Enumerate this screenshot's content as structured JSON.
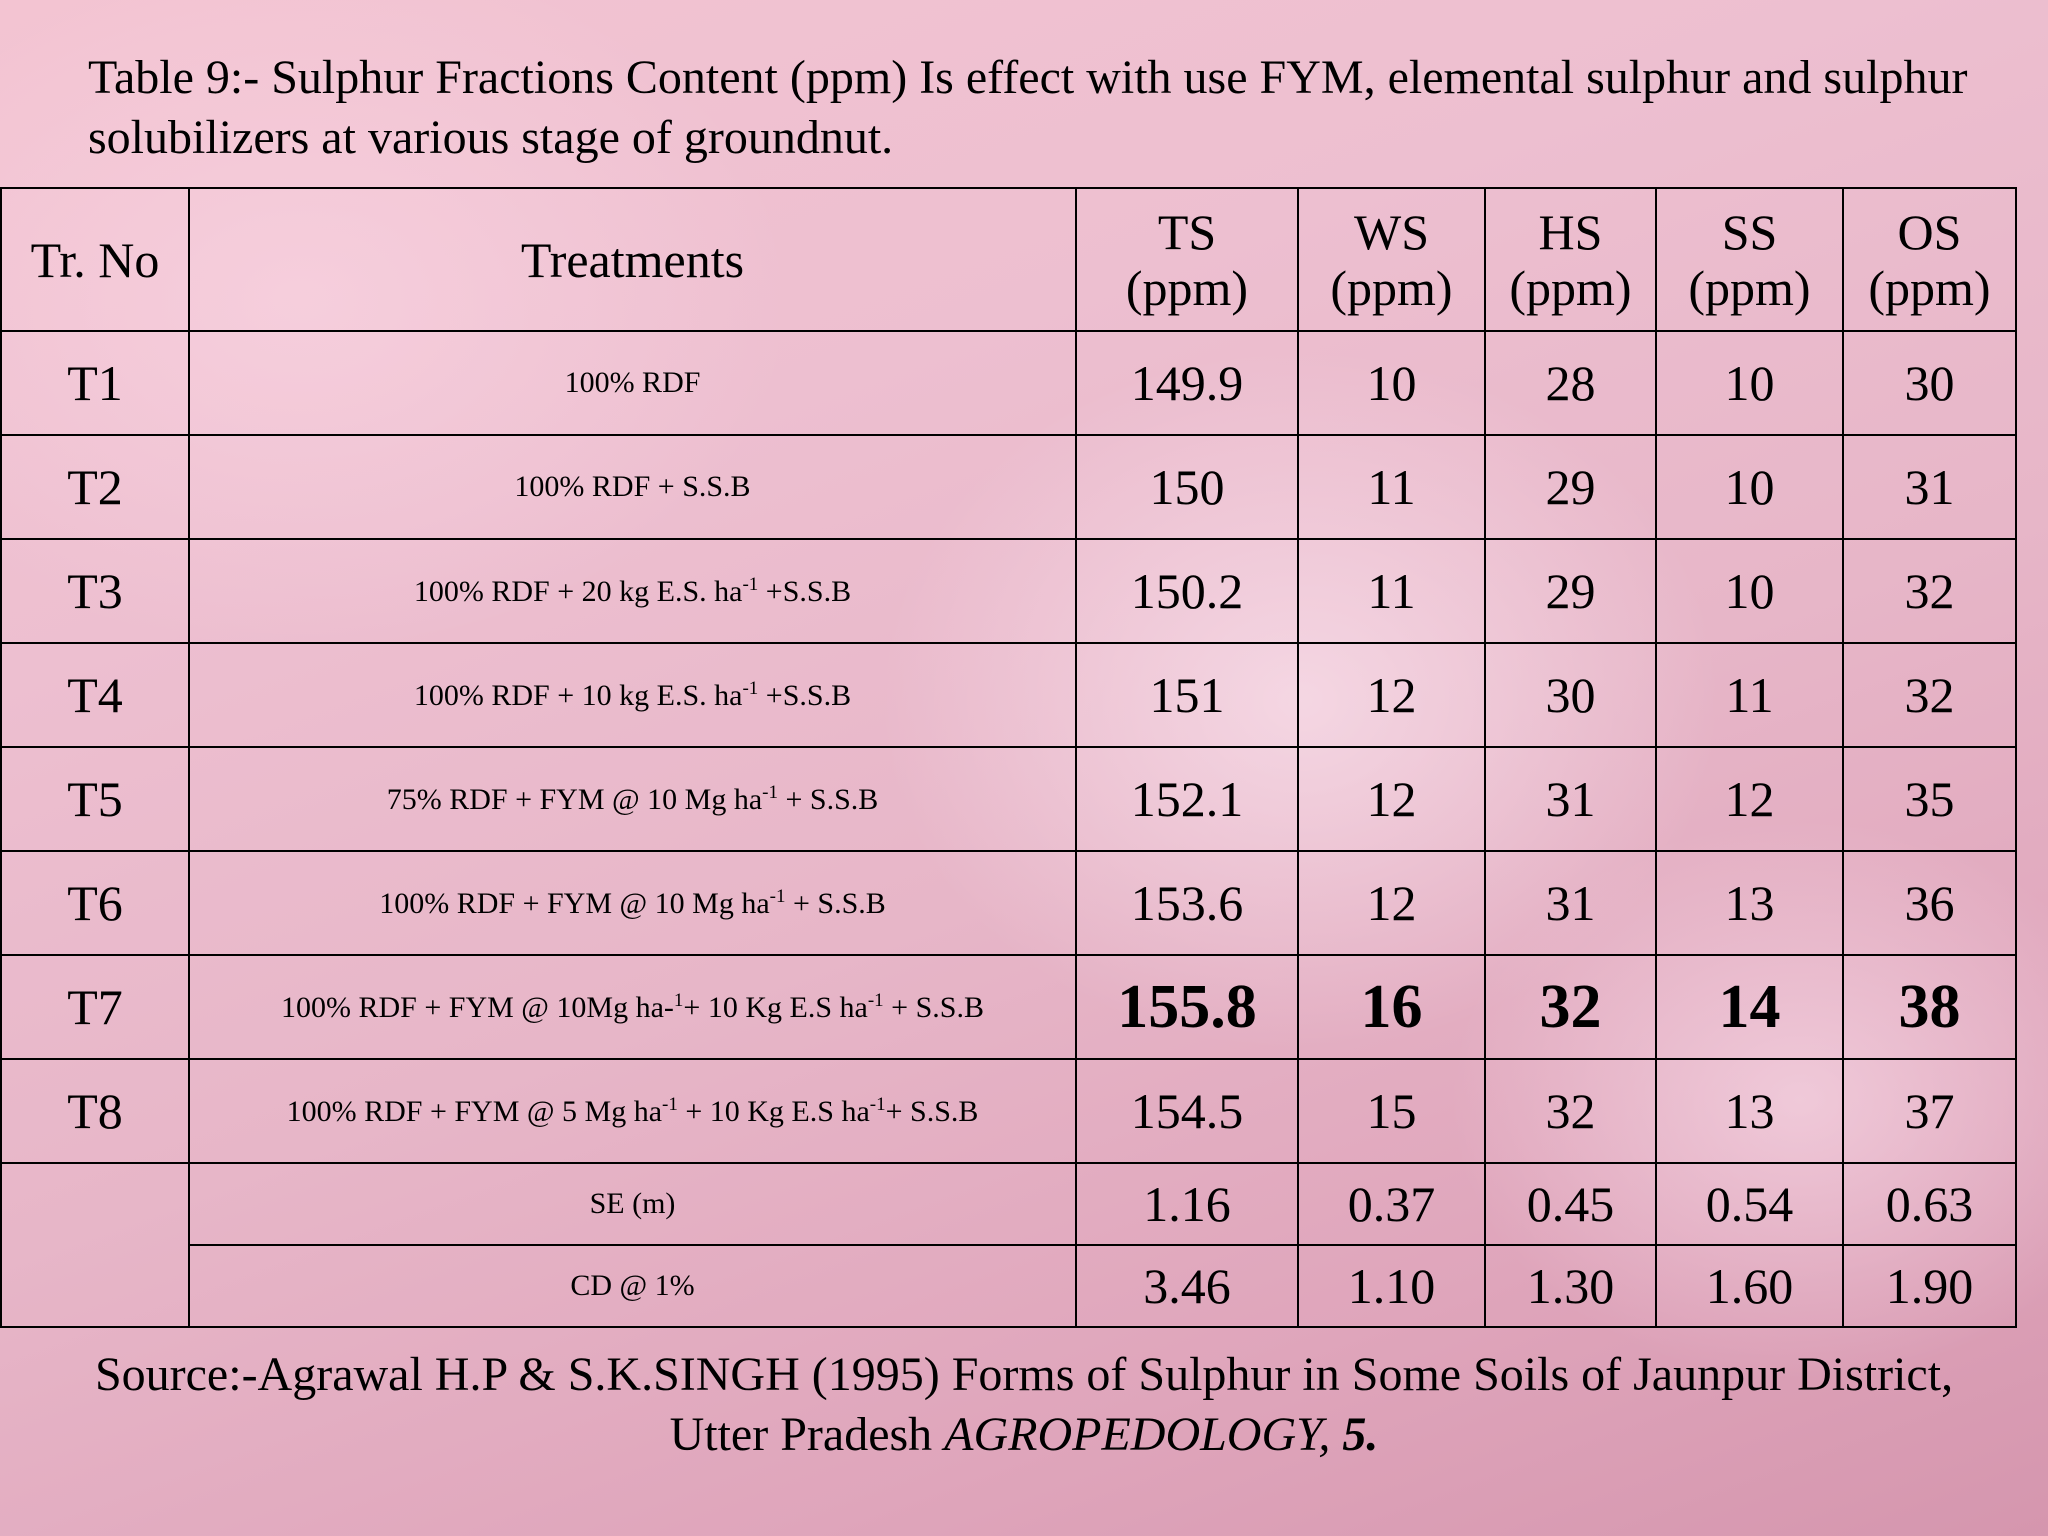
{
  "title": "Table 9:- Sulphur Fractions Content (ppm) Is effect with use FYM, elemental sulphur and sulphur solubilizers at various stage of groundnut.",
  "table": {
    "headers": {
      "no": "Tr. No",
      "treatments": "Treatments",
      "ts": [
        "TS",
        "(ppm)"
      ],
      "ws": [
        "WS",
        "(ppm)"
      ],
      "hs": [
        "HS",
        "(ppm)"
      ],
      "ss": [
        "SS",
        "(ppm)"
      ],
      "os": [
        "OS",
        "(ppm)"
      ]
    },
    "rows": [
      {
        "no": "T1",
        "t": [
          "100% RDF"
        ],
        "sup": [],
        "ts": "149.9",
        "ws": "10",
        "hs": "28",
        "ss": "10",
        "os": "30"
      },
      {
        "no": "T2",
        "t": [
          "100% RDF + S.S.B"
        ],
        "sup": [],
        "ts": "150",
        "ws": "11",
        "hs": "29",
        "ss": "10",
        "os": "31"
      },
      {
        "no": "T3",
        "t": [
          "100% RDF + 20 kg E.S. ha",
          " +S.S.B"
        ],
        "sup": [
          "-1"
        ],
        "ts": "150.2",
        "ws": "11",
        "hs": "29",
        "ss": "10",
        "os": "32"
      },
      {
        "no": "T4",
        "t": [
          "100% RDF + 10 kg E.S. ha",
          " +S.S.B"
        ],
        "sup": [
          "-1"
        ],
        "ts": "151",
        "ws": "12",
        "hs": "30",
        "ss": "11",
        "os": "32"
      },
      {
        "no": "T5",
        "t": [
          "75% RDF + FYM @ 10 Mg ha",
          " + S.S.B"
        ],
        "sup": [
          "-1"
        ],
        "ts": "152.1",
        "ws": "12",
        "hs": "31",
        "ss": "12",
        "os": "35"
      },
      {
        "no": "T6",
        "t": [
          "100% RDF + FYM @ 10 Mg ha",
          " + S.S.B"
        ],
        "sup": [
          "-1"
        ],
        "ts": "153.6",
        "ws": "12",
        "hs": "31",
        "ss": "13",
        "os": "36"
      },
      {
        "no": "T7",
        "t": [
          "100% RDF + FYM @ 10Mg ha-",
          "+ 10 Kg E.S ha",
          " + S.S.B"
        ],
        "sup": [
          "1",
          "-1"
        ],
        "ts": "155.8",
        "ws": "16",
        "hs": "32",
        "ss": "14",
        "os": "38"
      },
      {
        "no": "T8",
        "t": [
          "100% RDF + FYM @ 5 Mg ha",
          " + 10 Kg E.S ha",
          "+ S.S.B"
        ],
        "sup": [
          "-1",
          "-1"
        ],
        "ts": "154.5",
        "ws": "15",
        "hs": "32",
        "ss": "13",
        "os": "37"
      }
    ],
    "stats": [
      {
        "label": "SE (m)",
        "ts": "1.16",
        "ws": "0.37",
        "hs": "0.45",
        "ss": "0.54",
        "os": "0.63"
      },
      {
        "label": "CD @ 1%",
        "ts": "3.46",
        "ws": "1.10",
        "hs": "1.30",
        "ss": "1.60",
        "os": "1.90"
      }
    ]
  },
  "source": {
    "line1": "Source:-Agrawal H.P & S.K.SINGH (1995) Forms of Sulphur in Some Soils of Jaunpur District,",
    "line2_prefix": "Utter Pradesh ",
    "journal": "AGROPEDOLOGY, ",
    "volume": "5."
  }
}
